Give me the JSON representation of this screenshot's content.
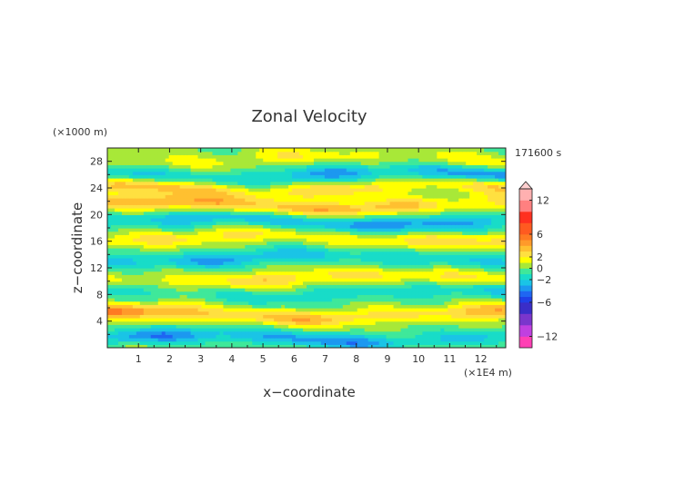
{
  "chart_data": {
    "type": "heatmap",
    "title": "Zonal Velocity",
    "xlabel": "x−coordinate",
    "ylabel": "z−coordinate",
    "x_unit": "(×1E4 m)",
    "y_unit": "(×1000 m)",
    "time_label": "171600 s",
    "xlim": [
      0,
      12.8
    ],
    "ylim": [
      0,
      30
    ],
    "x_ticks": [
      "1",
      "2",
      "3",
      "4",
      "5",
      "6",
      "7",
      "8",
      "9",
      "10",
      "11",
      "12"
    ],
    "y_ticks": [
      "4",
      "8",
      "12",
      "16",
      "20",
      "24",
      "28"
    ],
    "colorbar": {
      "range": [
        -14,
        14
      ],
      "labels": [
        "12",
        "6",
        "2",
        "0",
        "−2",
        "−6",
        "−12"
      ],
      "label_values": [
        12,
        6,
        2,
        0,
        -2,
        -6,
        -12
      ],
      "levels": [
        -14,
        -12,
        -10,
        -8,
        -6,
        -5,
        -4,
        -3,
        -2,
        -1,
        0,
        1,
        2,
        3,
        4,
        5,
        6,
        8,
        10,
        12,
        14
      ],
      "colors": [
        "#ff3fb4",
        "#c040e0",
        "#7a36cc",
        "#3a2ec8",
        "#1f40e8",
        "#1f66f2",
        "#1c98f0",
        "#1ac4e6",
        "#18dcc8",
        "#3fe89a",
        "#a8e838",
        "#ffff00",
        "#ffe040",
        "#ffc030",
        "#ff9a2a",
        "#ff7a22",
        "#ff5a20",
        "#ff3020",
        "#ff8080",
        "#ffb0b0"
      ]
    },
    "bands": [
      {
        "z": 1.5,
        "amp": -3.5
      },
      {
        "z": 5.0,
        "amp": 4.5
      },
      {
        "z": 8.2,
        "amp": -2.0
      },
      {
        "z": 10.5,
        "amp": 2.5
      },
      {
        "z": 13.5,
        "amp": -3.0
      },
      {
        "z": 16.5,
        "amp": 3.0
      },
      {
        "z": 19.0,
        "amp": -3.5
      },
      {
        "z": 21.5,
        "amp": 4.0
      },
      {
        "z": 24.0,
        "amp": 3.5
      },
      {
        "z": 26.0,
        "amp": -3.5
      },
      {
        "z": 28.5,
        "amp": 1.5
      }
    ]
  }
}
